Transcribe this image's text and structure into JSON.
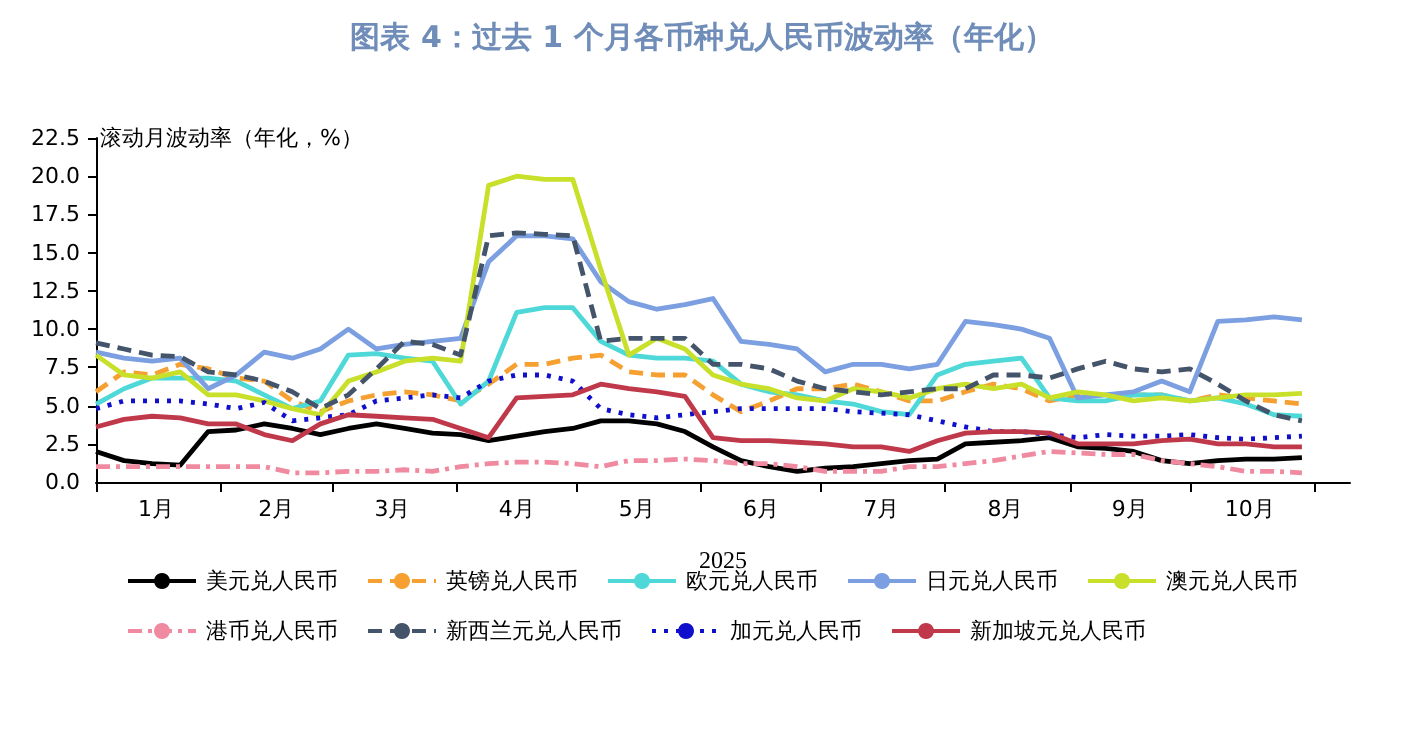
{
  "chart_data": {
    "type": "line",
    "title": "图表 4：过去 1 个月各币种兑人民币波动率（年化）",
    "ylabel": "滚动月波动率（年化，%）",
    "xlabel": "2025",
    "x": [
      "2025-01-01",
      "2025-01-08",
      "2025-01-15",
      "2025-01-22",
      "2025-01-29",
      "2025-02-05",
      "2025-02-12",
      "2025-02-19",
      "2025-02-26",
      "2025-03-05",
      "2025-03-12",
      "2025-03-19",
      "2025-03-26",
      "2025-04-02",
      "2025-04-09",
      "2025-04-16",
      "2025-04-23",
      "2025-04-30",
      "2025-05-07",
      "2025-05-14",
      "2025-05-21",
      "2025-05-28",
      "2025-06-04",
      "2025-06-11",
      "2025-06-18",
      "2025-06-25",
      "2025-07-02",
      "2025-07-09",
      "2025-07-16",
      "2025-07-23",
      "2025-07-30",
      "2025-08-06",
      "2025-08-13",
      "2025-08-20",
      "2025-08-27",
      "2025-09-03",
      "2025-09-10",
      "2025-09-17",
      "2025-09-24",
      "2025-10-01",
      "2025-10-08",
      "2025-10-15",
      "2025-10-22",
      "2025-10-29"
    ],
    "xlim": [
      "2025-01-01",
      "2025-11-10"
    ],
    "xticks": [
      {
        "value": "2025-01-01",
        "label": null
      },
      {
        "value": "2025-01-16",
        "label": "1月"
      },
      {
        "value": "2025-02-01",
        "label": null
      },
      {
        "value": "2025-02-15",
        "label": "2月"
      },
      {
        "value": "2025-03-01",
        "label": null
      },
      {
        "value": "2025-03-16",
        "label": "3月"
      },
      {
        "value": "2025-04-01",
        "label": null
      },
      {
        "value": "2025-04-16",
        "label": "4月"
      },
      {
        "value": "2025-05-01",
        "label": null
      },
      {
        "value": "2025-05-16",
        "label": "5月"
      },
      {
        "value": "2025-06-01",
        "label": null
      },
      {
        "value": "2025-06-16",
        "label": "6月"
      },
      {
        "value": "2025-07-01",
        "label": null
      },
      {
        "value": "2025-07-16",
        "label": "7月"
      },
      {
        "value": "2025-08-01",
        "label": null
      },
      {
        "value": "2025-08-16",
        "label": "8月"
      },
      {
        "value": "2025-09-01",
        "label": null
      },
      {
        "value": "2025-09-16",
        "label": "9月"
      },
      {
        "value": "2025-10-01",
        "label": null
      },
      {
        "value": "2025-10-16",
        "label": "10月"
      },
      {
        "value": "2025-11-01",
        "label": null
      }
    ],
    "ylim": [
      0,
      22.5
    ],
    "yticks": [
      {
        "value": 0,
        "label": "0.0"
      },
      2.5,
      {
        "value": 5,
        "label": "5.0"
      },
      7.5,
      {
        "value": 10,
        "label": "10.0"
      },
      12.5,
      {
        "value": 15,
        "label": "15.0"
      },
      17.5,
      {
        "value": 20,
        "label": "20.0"
      },
      22.5
    ],
    "grid": false,
    "legend": "bottom",
    "marker": "none",
    "series": [
      {
        "name": "美元兑人民币",
        "color": "#000000",
        "line_style": "solid",
        "values": [
          2.0,
          1.4,
          1.2,
          1.1,
          3.3,
          3.4,
          3.8,
          3.5,
          3.1,
          3.5,
          3.8,
          3.5,
          3.2,
          3.1,
          2.7,
          3.0,
          3.3,
          3.5,
          4.0,
          4.0,
          3.8,
          3.3,
          2.3,
          1.4,
          1.0,
          0.7,
          0.9,
          1.0,
          1.2,
          1.4,
          1.5,
          2.5,
          2.6,
          2.7,
          2.9,
          2.3,
          2.2,
          2.0,
          1.4,
          1.2,
          1.4,
          1.5,
          1.5,
          1.6
        ]
      },
      {
        "name": "英镑兑人民币",
        "color": "#f5a031",
        "line_style": "dashed",
        "values": [
          5.9,
          7.2,
          7.0,
          7.7,
          7.4,
          6.8,
          6.6,
          5.3,
          4.6,
          5.3,
          5.7,
          5.9,
          5.7,
          5.3,
          6.4,
          7.7,
          7.7,
          8.1,
          8.3,
          7.2,
          7.0,
          7.0,
          5.7,
          4.6,
          5.3,
          6.1,
          6.1,
          6.4,
          5.9,
          5.3,
          5.3,
          5.9,
          6.4,
          6.1,
          5.3,
          5.7,
          5.7,
          5.7,
          5.7,
          5.3,
          5.7,
          5.5,
          5.3,
          5.1
        ]
      },
      {
        "name": "欧元兑人民币",
        "color": "#4fd8d8",
        "line_style": "solid",
        "values": [
          5.1,
          6.1,
          6.8,
          6.8,
          6.8,
          6.6,
          5.7,
          4.8,
          5.3,
          8.3,
          8.4,
          8.1,
          7.9,
          5.1,
          6.6,
          11.1,
          11.4,
          11.4,
          9.2,
          8.3,
          8.1,
          8.1,
          7.9,
          6.4,
          5.9,
          5.7,
          5.3,
          5.1,
          4.6,
          4.4,
          7.0,
          7.7,
          7.9,
          8.1,
          5.5,
          5.3,
          5.3,
          5.7,
          5.7,
          5.3,
          5.5,
          5.1,
          4.4,
          4.3
        ]
      },
      {
        "name": "日元兑人民币",
        "color": "#7b9fe0",
        "line_style": "solid",
        "values": [
          8.5,
          8.1,
          7.9,
          8.1,
          6.1,
          7.0,
          8.5,
          8.1,
          8.7,
          10.0,
          8.7,
          9.0,
          9.2,
          9.4,
          14.4,
          16.1,
          16.1,
          15.9,
          13.1,
          11.8,
          11.3,
          11.6,
          12.0,
          9.2,
          9.0,
          8.7,
          7.2,
          7.7,
          7.7,
          7.4,
          7.7,
          10.5,
          10.3,
          10.0,
          9.4,
          5.5,
          5.7,
          5.9,
          6.6,
          5.9,
          10.5,
          10.6,
          10.8,
          10.6
        ]
      },
      {
        "name": "澳元兑人民币",
        "color": "#c8e02a",
        "line_style": "solid",
        "values": [
          8.3,
          7.0,
          6.8,
          7.2,
          5.7,
          5.7,
          5.3,
          4.8,
          4.4,
          6.6,
          7.2,
          7.9,
          8.1,
          7.9,
          19.4,
          20.0,
          19.8,
          19.8,
          13.9,
          8.3,
          9.4,
          8.7,
          7.0,
          6.4,
          6.1,
          5.5,
          5.3,
          6.1,
          5.9,
          5.5,
          6.1,
          6.4,
          6.1,
          6.4,
          5.5,
          5.9,
          5.7,
          5.3,
          5.5,
          5.3,
          5.5,
          5.7,
          5.7,
          5.8
        ]
      },
      {
        "name": "港币兑人民币",
        "color": "#f08aa0",
        "line_style": "dashdot",
        "values": [
          1.0,
          1.0,
          1.0,
          1.0,
          1.0,
          1.0,
          1.0,
          0.6,
          0.6,
          0.7,
          0.7,
          0.8,
          0.7,
          1.0,
          1.2,
          1.3,
          1.3,
          1.2,
          1.0,
          1.4,
          1.4,
          1.5,
          1.4,
          1.2,
          1.2,
          1.0,
          0.7,
          0.7,
          0.7,
          1.0,
          1.0,
          1.2,
          1.4,
          1.7,
          2.0,
          1.9,
          1.8,
          1.8,
          1.4,
          1.2,
          1.0,
          0.7,
          0.7,
          0.6
        ]
      },
      {
        "name": "新西兰元兑人民币",
        "color": "#44546a",
        "line_style": "dashed",
        "values": [
          9.1,
          8.7,
          8.3,
          8.2,
          7.2,
          7.0,
          6.6,
          5.9,
          4.8,
          5.7,
          7.4,
          9.2,
          9.0,
          8.3,
          16.1,
          16.3,
          16.2,
          16.1,
          9.2,
          9.4,
          9.4,
          9.4,
          7.7,
          7.7,
          7.4,
          6.6,
          6.1,
          5.9,
          5.7,
          5.9,
          6.1,
          6.1,
          7.0,
          7.0,
          6.8,
          7.4,
          7.9,
          7.4,
          7.2,
          7.4,
          6.4,
          5.3,
          4.4,
          4.0
        ]
      },
      {
        "name": "加元兑人民币",
        "color": "#1010cc",
        "line_style": "dotted",
        "values": [
          4.8,
          5.3,
          5.3,
          5.3,
          5.1,
          4.8,
          5.2,
          4.0,
          4.2,
          4.4,
          5.3,
          5.5,
          5.7,
          5.5,
          6.6,
          7.0,
          7.0,
          6.6,
          4.8,
          4.4,
          4.2,
          4.4,
          4.6,
          4.8,
          4.8,
          4.8,
          4.8,
          4.6,
          4.5,
          4.4,
          4.0,
          3.6,
          3.3,
          3.3,
          3.1,
          2.9,
          3.1,
          3.0,
          3.0,
          3.1,
          2.9,
          2.8,
          2.9,
          3.0
        ]
      },
      {
        "name": "新加坡元兑人民币",
        "color": "#c0394b",
        "line_style": "solid",
        "values": [
          3.6,
          4.1,
          4.3,
          4.2,
          3.8,
          3.8,
          3.1,
          2.7,
          3.8,
          4.4,
          4.3,
          4.2,
          4.1,
          3.5,
          2.9,
          5.5,
          5.6,
          5.7,
          6.4,
          6.1,
          5.9,
          5.6,
          2.9,
          2.7,
          2.7,
          2.6,
          2.5,
          2.3,
          2.3,
          2.0,
          2.7,
          3.2,
          3.3,
          3.3,
          3.2,
          2.5,
          2.5,
          2.5,
          2.7,
          2.8,
          2.5,
          2.5,
          2.3,
          2.3
        ]
      }
    ]
  }
}
